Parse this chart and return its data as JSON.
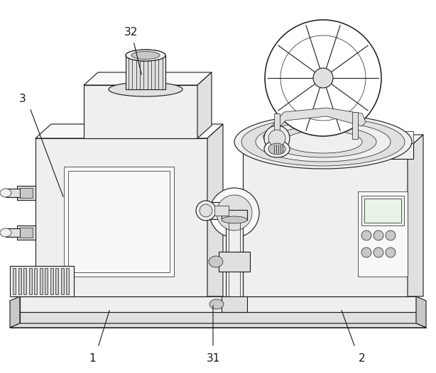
{
  "background_color": "#ffffff",
  "lc": "#1a1a1a",
  "fl": "#efefef",
  "flr": "#f8f8f8",
  "fd": "#c8c8c8",
  "fm": "#e0e0e0",
  "figsize": [
    6.14,
    5.26
  ],
  "dpi": 100
}
